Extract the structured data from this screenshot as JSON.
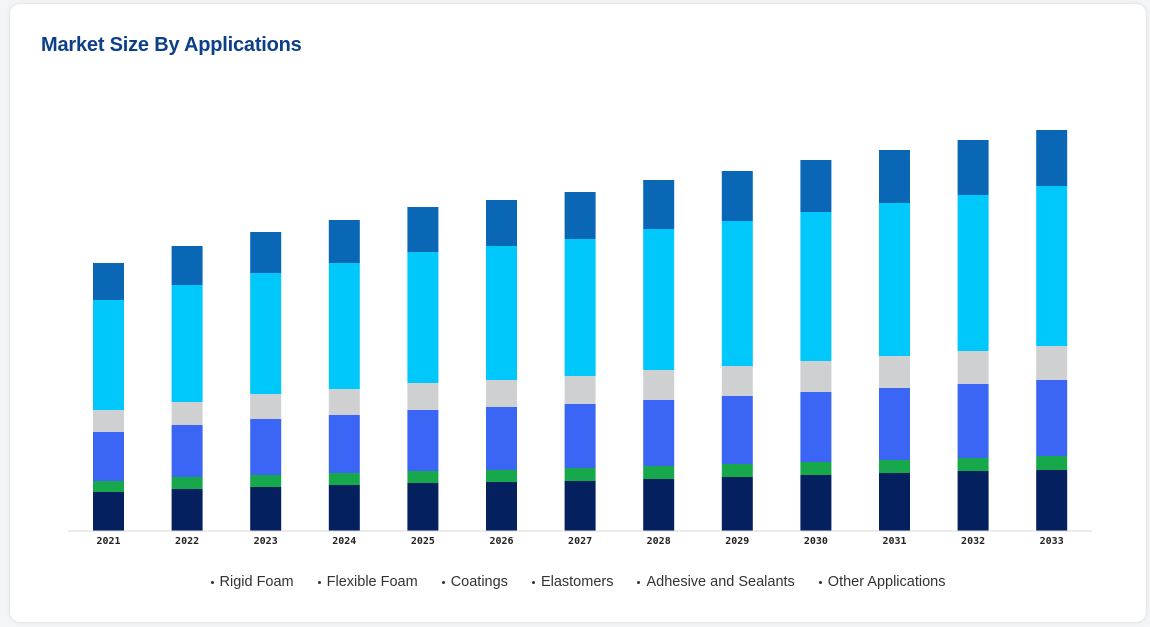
{
  "title": "Market Size By Applications",
  "chart_data": {
    "type": "bar",
    "stacked": true,
    "categories": [
      "2021",
      "2022",
      "2023",
      "2024",
      "2025",
      "2026",
      "2027",
      "2028",
      "2029",
      "2030",
      "2031",
      "2032",
      "2033"
    ],
    "series": [
      {
        "name": "Rigid Foam",
        "color": "#04205e",
        "values": [
          39,
          42,
          44,
          46,
          48,
          49,
          50,
          52,
          54,
          56,
          58,
          60,
          61
        ]
      },
      {
        "name": "Flexible Foam",
        "color": "#17a84b",
        "values": [
          11,
          12,
          12,
          12,
          12,
          12,
          13,
          13,
          13,
          13,
          13,
          13,
          14
        ]
      },
      {
        "name": "Coatings",
        "color": "#3b66f5",
        "values": [
          49,
          52,
          56,
          58,
          61,
          63,
          64,
          66,
          68,
          70,
          72,
          74,
          76
        ]
      },
      {
        "name": "Elastomers",
        "color": "#cfd0d2",
        "values": [
          22,
          23,
          25,
          26,
          27,
          27,
          28,
          30,
          30,
          31,
          32,
          33,
          34
        ]
      },
      {
        "name": "Adhesive and Sealants",
        "color": "#00c8fa",
        "values": [
          110,
          117,
          121,
          126,
          131,
          134,
          137,
          141,
          145,
          149,
          153,
          156,
          160
        ]
      },
      {
        "name": "Other Applications",
        "color": "#0a67b6",
        "values": [
          37,
          39,
          41,
          43,
          45,
          46,
          47,
          49,
          50,
          52,
          53,
          55,
          56
        ]
      }
    ],
    "ylim": [
      0,
      420
    ],
    "grid": false,
    "legend_position": "bottom"
  }
}
